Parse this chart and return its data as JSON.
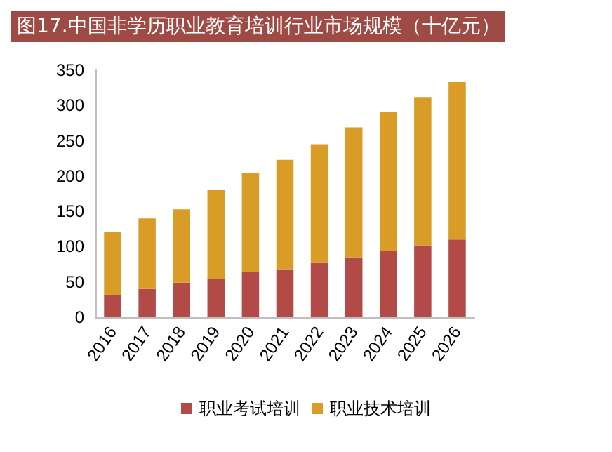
{
  "chart_data": {
    "type": "bar",
    "title": "图17.中国非学历职业教育培训行业市场规模（十亿元）",
    "stacked": true,
    "categories": [
      "2016",
      "2017",
      "2018",
      "2019",
      "2020",
      "2021",
      "2022",
      "2023",
      "2024",
      "2025",
      "2026"
    ],
    "series": [
      {
        "name": "职业考试培训",
        "color": "#b24a47",
        "values": [
          31,
          40,
          49,
          54,
          64,
          68,
          77,
          85,
          94,
          102,
          110
        ]
      },
      {
        "name": "职业技术培训",
        "color": "#d99c26",
        "values": [
          90,
          100,
          104,
          126,
          140,
          155,
          168,
          184,
          197,
          210,
          223
        ]
      }
    ],
    "ylim": [
      0,
      350
    ],
    "yticks": [
      0,
      50,
      100,
      150,
      200,
      250,
      300,
      350
    ],
    "grid": false,
    "legend": "bottom"
  }
}
